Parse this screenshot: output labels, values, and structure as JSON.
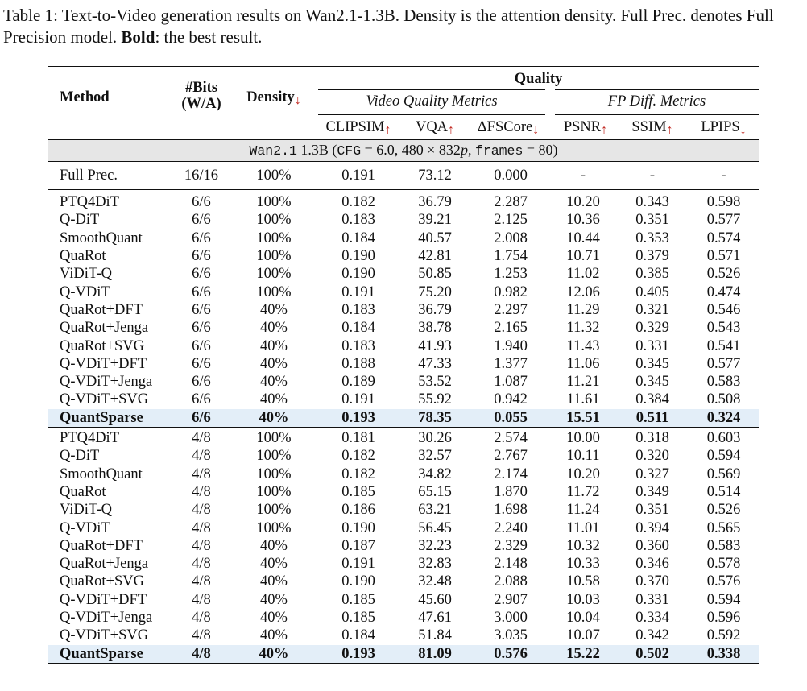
{
  "caption": {
    "label": "Table 1:",
    "text": "Text-to-Video generation results on Wan2.1-1.3B. Density is the attention density. Full Prec. denotes Full Precision model.",
    "bold": "Bold",
    "tail": ": the best result."
  },
  "header": {
    "method": "Method",
    "bits_line1": "#Bits",
    "bits_line2": "(W/A)",
    "density": "Density",
    "quality": "Quality",
    "vqm": "Video Quality Metrics",
    "fpm": "FP Diff. Metrics",
    "clipsim": "CLIPSIM",
    "vqa": "VQA",
    "dfscore": "ΔFSCore",
    "psnr": "PSNR",
    "ssim": "SSIM",
    "lpips": "LPIPS",
    "up": "↑",
    "down": "↓"
  },
  "config": {
    "model": "Wan2.1",
    "model_rest": " 1.3B (",
    "cfg": "CFG",
    "cfg_val": " = 6.0, 480 × 832",
    "p": "p",
    "comma": ", ",
    "frames": "frames",
    "frames_val": " = 80)"
  },
  "full_prec": [
    "Full Prec.",
    "16/16",
    "100%",
    "0.191",
    "73.12",
    "0.000",
    "-",
    "-",
    "-"
  ],
  "group_66": [
    [
      "PTQ4DiT",
      "6/6",
      "100%",
      "0.182",
      "36.79",
      "2.287",
      "10.20",
      "0.343",
      "0.598"
    ],
    [
      "Q-DiT",
      "6/6",
      "100%",
      "0.183",
      "39.21",
      "2.125",
      "10.36",
      "0.351",
      "0.577"
    ],
    [
      "SmoothQuant",
      "6/6",
      "100%",
      "0.184",
      "40.57",
      "2.008",
      "10.44",
      "0.353",
      "0.574"
    ],
    [
      "QuaRot",
      "6/6",
      "100%",
      "0.190",
      "42.81",
      "1.754",
      "10.71",
      "0.379",
      "0.571"
    ],
    [
      "ViDiT-Q",
      "6/6",
      "100%",
      "0.190",
      "50.85",
      "1.253",
      "11.02",
      "0.385",
      "0.526"
    ],
    [
      "Q-VDiT",
      "6/6",
      "100%",
      "0.191",
      "75.20",
      "0.982",
      "12.06",
      "0.405",
      "0.474"
    ],
    [
      "QuaRot+DFT",
      "6/6",
      "40%",
      "0.183",
      "36.79",
      "2.297",
      "11.29",
      "0.321",
      "0.546"
    ],
    [
      "QuaRot+Jenga",
      "6/6",
      "40%",
      "0.184",
      "38.78",
      "2.165",
      "11.32",
      "0.329",
      "0.543"
    ],
    [
      "QuaRot+SVG",
      "6/6",
      "40%",
      "0.183",
      "41.93",
      "1.940",
      "11.43",
      "0.331",
      "0.541"
    ],
    [
      "Q-VDiT+DFT",
      "6/6",
      "40%",
      "0.188",
      "47.33",
      "1.377",
      "11.06",
      "0.345",
      "0.577"
    ],
    [
      "Q-VDiT+Jenga",
      "6/6",
      "40%",
      "0.189",
      "53.52",
      "1.087",
      "11.21",
      "0.345",
      "0.583"
    ],
    [
      "Q-VDiT+SVG",
      "6/6",
      "40%",
      "0.191",
      "55.92",
      "0.942",
      "11.61",
      "0.384",
      "0.508"
    ]
  ],
  "best_66": [
    "QuantSparse",
    "6/6",
    "40%",
    "0.193",
    "78.35",
    "0.055",
    "15.51",
    "0.511",
    "0.324"
  ],
  "group_48": [
    [
      "PTQ4DiT",
      "4/8",
      "100%",
      "0.181",
      "30.26",
      "2.574",
      "10.00",
      "0.318",
      "0.603"
    ],
    [
      "Q-DiT",
      "4/8",
      "100%",
      "0.182",
      "32.57",
      "2.767",
      "10.11",
      "0.320",
      "0.594"
    ],
    [
      "SmoothQuant",
      "4/8",
      "100%",
      "0.182",
      "34.82",
      "2.174",
      "10.20",
      "0.327",
      "0.569"
    ],
    [
      "QuaRot",
      "4/8",
      "100%",
      "0.185",
      "65.15",
      "1.870",
      "11.72",
      "0.349",
      "0.514"
    ],
    [
      "ViDiT-Q",
      "4/8",
      "100%",
      "0.186",
      "63.21",
      "1.698",
      "11.24",
      "0.351",
      "0.526"
    ],
    [
      "Q-VDiT",
      "4/8",
      "100%",
      "0.190",
      "56.45",
      "2.240",
      "11.01",
      "0.394",
      "0.565"
    ],
    [
      "QuaRot+DFT",
      "4/8",
      "40%",
      "0.187",
      "32.23",
      "2.329",
      "10.32",
      "0.360",
      "0.583"
    ],
    [
      "QuaRot+Jenga",
      "4/8",
      "40%",
      "0.191",
      "32.83",
      "2.148",
      "10.33",
      "0.346",
      "0.578"
    ],
    [
      "QuaRot+SVG",
      "4/8",
      "40%",
      "0.190",
      "32.48",
      "2.088",
      "10.58",
      "0.370",
      "0.576"
    ],
    [
      "Q-VDiT+DFT",
      "4/8",
      "40%",
      "0.185",
      "45.60",
      "2.907",
      "10.03",
      "0.331",
      "0.594"
    ],
    [
      "Q-VDiT+Jenga",
      "4/8",
      "40%",
      "0.185",
      "47.61",
      "3.000",
      "10.04",
      "0.334",
      "0.596"
    ],
    [
      "Q-VDiT+SVG",
      "4/8",
      "40%",
      "0.184",
      "51.84",
      "3.035",
      "10.07",
      "0.342",
      "0.592"
    ]
  ],
  "best_48": [
    "QuantSparse",
    "4/8",
    "40%",
    "0.193",
    "81.09",
    "0.576",
    "15.22",
    "0.502",
    "0.338"
  ]
}
